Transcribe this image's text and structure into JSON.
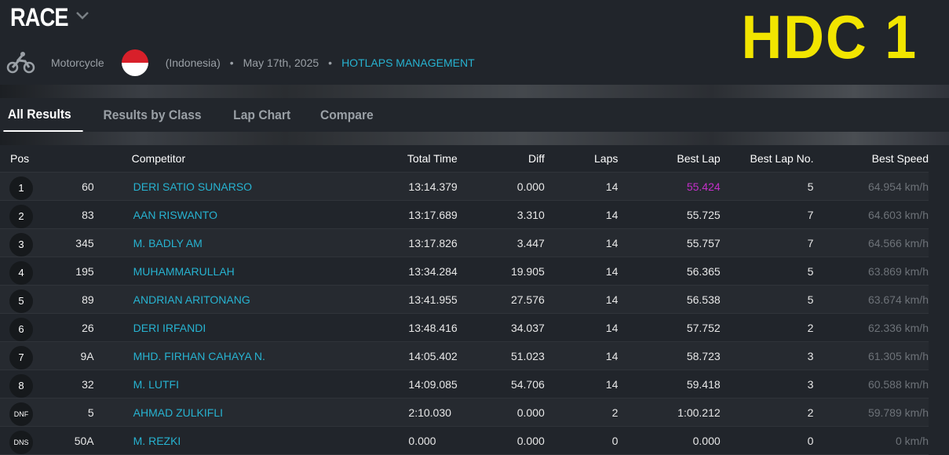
{
  "header": {
    "title": "RACE",
    "logo": "HDC 1",
    "meta": {
      "category": "Motorcycle",
      "country": "(Indonesia)",
      "separator": "•",
      "date": "May 17th, 2025",
      "organizer": "HOTLAPS MANAGEMENT"
    }
  },
  "tabs": [
    "All Results",
    "Results by Class",
    "Lap Chart",
    "Compare"
  ],
  "table": {
    "columns": [
      "Pos",
      "Competitor",
      "Total Time",
      "Diff",
      "Laps",
      "Best Lap",
      "Best Lap No.",
      "Best Speed"
    ],
    "rows": [
      [
        "1",
        "60",
        "DERI SATIO SUNARSO",
        "13:14.379",
        "0.000",
        "14",
        "55.424",
        "5",
        "64.954 km/h"
      ],
      [
        "2",
        "83",
        "AAN RISWANTO",
        "13:17.689",
        "3.310",
        "14",
        "55.725",
        "7",
        "64.603 km/h"
      ],
      [
        "3",
        "345",
        "M. BADLY AM",
        "13:17.826",
        "3.447",
        "14",
        "55.757",
        "7",
        "64.566 km/h"
      ],
      [
        "4",
        "195",
        "MUHAMMARULLAH",
        "13:34.284",
        "19.905",
        "14",
        "56.365",
        "5",
        "63.869 km/h"
      ],
      [
        "5",
        "89",
        "ANDRIAN ARITONANG",
        "13:41.955",
        "27.576",
        "14",
        "56.538",
        "5",
        "63.674 km/h"
      ],
      [
        "6",
        "26",
        "DERI IRFANDI",
        "13:48.416",
        "34.037",
        "14",
        "57.752",
        "2",
        "62.336 km/h"
      ],
      [
        "7",
        "9A",
        "MHD. FIRHAN CAHAYA N.",
        "14:05.402",
        "51.023",
        "14",
        "58.723",
        "3",
        "61.305 km/h"
      ],
      [
        "8",
        "32",
        "M. LUTFI",
        "14:09.085",
        "54.706",
        "14",
        "59.418",
        "3",
        "60.588 km/h"
      ],
      [
        "DNF",
        "5",
        "AHMAD ZULKIFLI",
        "2:10.030",
        "0.000",
        "2",
        "1:00.212",
        "2",
        "59.789 km/h"
      ],
      [
        "DNS",
        "50A",
        "M. REZKI",
        "0.000",
        "0.000",
        "0",
        "0.000",
        "0",
        "0 km/h"
      ]
    ]
  }
}
